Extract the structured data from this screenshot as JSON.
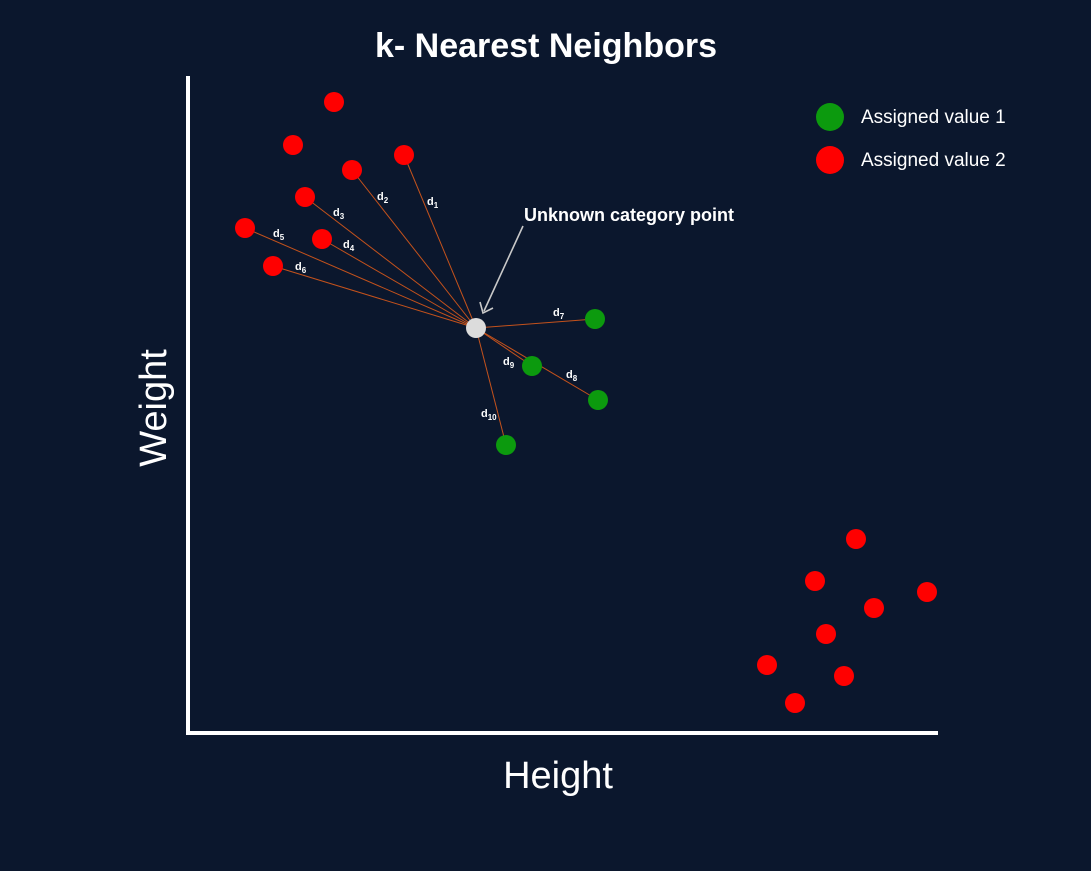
{
  "title": "k- Nearest Neighbors",
  "axes": {
    "x_label": "Height",
    "y_label": "Weight"
  },
  "legend": [
    {
      "label": "Assigned value 1",
      "color": "#0c9a0e"
    },
    {
      "label": "Assigned value 2",
      "color": "#ff0000"
    }
  ],
  "annotation": "Unknown category point",
  "colors": {
    "background": "#0b172d",
    "axis": "#ffffff",
    "distance_line": "#c4521c",
    "unknown_point": "#dcdcdc",
    "arrow": "#c9c9c9"
  },
  "distances": [
    {
      "base": "d",
      "sub": "1"
    },
    {
      "base": "d",
      "sub": "2"
    },
    {
      "base": "d",
      "sub": "3"
    },
    {
      "base": "d",
      "sub": "4"
    },
    {
      "base": "d",
      "sub": "5"
    },
    {
      "base": "d",
      "sub": "6"
    },
    {
      "base": "d",
      "sub": "7"
    },
    {
      "base": "d",
      "sub": "8"
    },
    {
      "base": "d",
      "sub": "9"
    },
    {
      "base": "d",
      "sub": "10"
    }
  ]
}
